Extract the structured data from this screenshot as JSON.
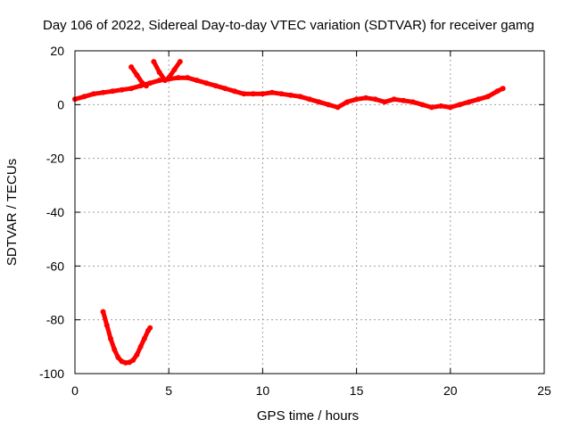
{
  "chart_data": {
    "type": "line",
    "title": "Day 106 of 2022, Sidereal Day-to-day VTEC variation (SDTVAR) for receiver gamg",
    "xlabel": "GPS time / hours",
    "ylabel": "SDTVAR / TECUs",
    "xlim": [
      0,
      25
    ],
    "ylim": [
      -100,
      20
    ],
    "xticks": [
      0,
      5,
      10,
      15,
      20,
      25
    ],
    "yticks": [
      -100,
      -80,
      -60,
      -40,
      -20,
      0,
      20
    ],
    "xtick_labels": [
      "0",
      "5",
      "10",
      "15",
      "20",
      "25"
    ],
    "ytick_labels": [
      "-100",
      "-80",
      "-60",
      "-40",
      "-20",
      "0",
      "20"
    ],
    "grid": true,
    "series": [
      {
        "name": "main",
        "color": "#ff0000",
        "x": [
          0.0,
          0.5,
          1.0,
          1.5,
          2.0,
          2.5,
          3.0,
          3.5,
          4.0,
          4.5,
          5.0,
          5.5,
          6.0,
          6.5,
          7.0,
          7.5,
          8.0,
          8.5,
          9.0,
          9.5,
          10.0,
          10.5,
          11.0,
          11.5,
          12.0,
          12.5,
          13.0,
          13.5,
          14.0,
          14.5,
          15.0,
          15.5,
          16.0,
          16.5,
          17.0,
          17.5,
          18.0,
          18.5,
          19.0,
          19.5,
          20.0,
          20.5,
          21.0,
          21.5,
          22.0,
          22.5,
          22.8
        ],
        "y": [
          2,
          3,
          4,
          4.5,
          5,
          5.5,
          6,
          7,
          8,
          9,
          9.5,
          10,
          10,
          9,
          8,
          7,
          6,
          5,
          4,
          4,
          4,
          4.5,
          4,
          3.5,
          3,
          2,
          1,
          0,
          -1,
          1,
          2,
          2.5,
          2,
          1,
          2,
          1.5,
          1,
          0,
          -1,
          -0.5,
          -1,
          0,
          1,
          2,
          3,
          5,
          6
        ]
      },
      {
        "name": "segment-2",
        "color": "#ff0000",
        "x": [
          1.5,
          1.7,
          1.9,
          2.1,
          2.3,
          2.5,
          2.7,
          2.9,
          3.1,
          3.3,
          3.5,
          3.7,
          3.9,
          4.0
        ],
        "y": [
          -77,
          -82,
          -87,
          -91,
          -94,
          -95.5,
          -96,
          -95.8,
          -95,
          -93,
          -90,
          -87,
          -84,
          -83
        ]
      },
      {
        "name": "spike-1",
        "color": "#ff0000",
        "x": [
          3.0,
          3.3,
          3.6,
          3.8
        ],
        "y": [
          14,
          11,
          8,
          7
        ]
      },
      {
        "name": "spike-2",
        "color": "#ff0000",
        "x": [
          4.2,
          4.5,
          4.8
        ],
        "y": [
          16,
          12,
          9
        ]
      },
      {
        "name": "spike-3",
        "color": "#ff0000",
        "x": [
          5.0,
          5.3,
          5.6
        ],
        "y": [
          10,
          13,
          16
        ]
      }
    ]
  }
}
